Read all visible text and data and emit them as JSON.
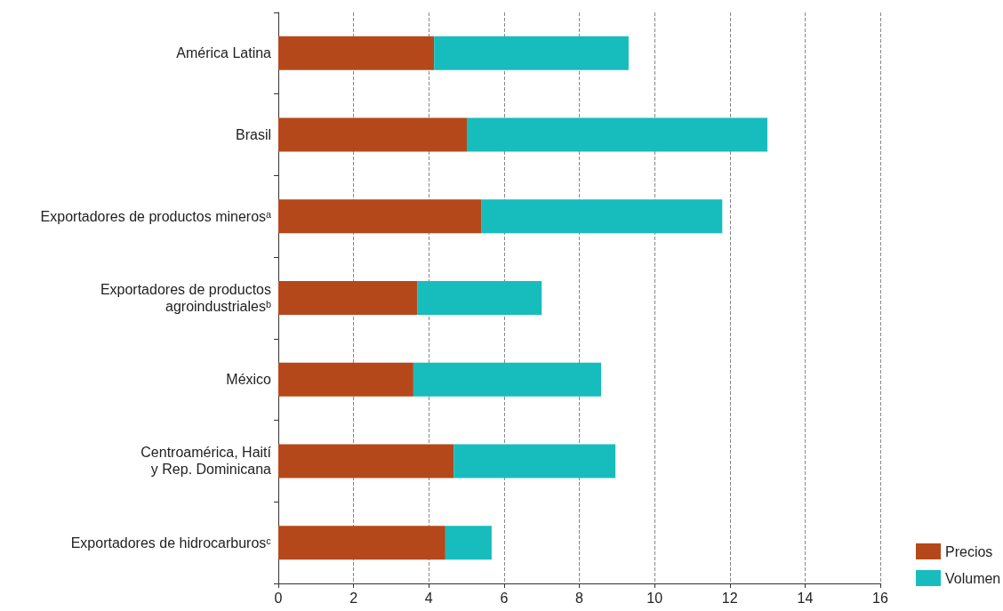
{
  "chart_data": {
    "type": "bar",
    "orientation": "horizontal",
    "stacked": true,
    "categories": [
      "América Latina",
      "Brasil",
      "Exportadores de productos minerosᵃ",
      "Exportadores de productos\nagroindustrialesᵇ",
      "México",
      "Centroamérica, Haití\ny Rep. Dominicana",
      "Exportadores de hidrocarburosᶜ"
    ],
    "series": [
      {
        "name": "Precios",
        "color": "#b5481a",
        "values": [
          4.14,
          5.01,
          5.39,
          3.69,
          3.59,
          4.66,
          4.44
        ]
      },
      {
        "name": "Volumen",
        "color": "#17bdbd",
        "values": [
          5.17,
          7.99,
          6.41,
          3.31,
          4.99,
          4.3,
          1.23
        ]
      }
    ],
    "xlim": [
      0,
      16
    ],
    "xticks": [
      0,
      2,
      4,
      6,
      8,
      10,
      12,
      14,
      16
    ],
    "grid": "x",
    "legend": "bottom right"
  }
}
